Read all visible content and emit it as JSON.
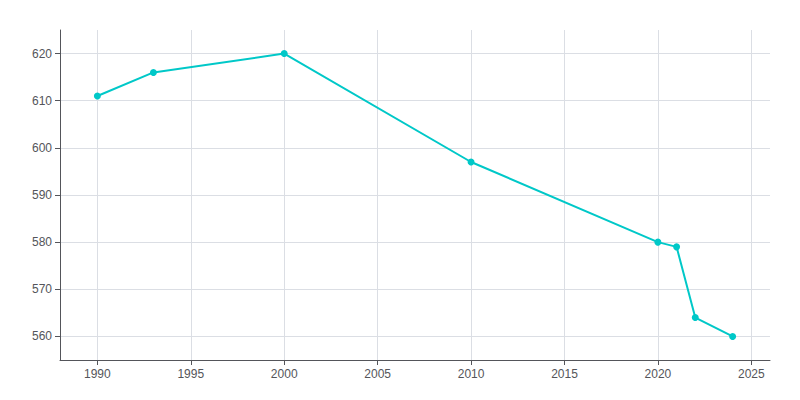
{
  "chart_data": {
    "type": "line",
    "x": [
      1990,
      1993,
      2000,
      2010,
      2020,
      2021,
      2022,
      2024
    ],
    "values": [
      611,
      616,
      620,
      597,
      580,
      579,
      564,
      560
    ],
    "color": "#00c8c8",
    "marker": "circle",
    "xlim": [
      1988,
      2026
    ],
    "ylim": [
      555,
      625
    ],
    "xticks": [
      1990,
      1995,
      2000,
      2005,
      2010,
      2015,
      2020,
      2025
    ],
    "yticks": [
      560,
      570,
      580,
      590,
      600,
      610,
      620
    ],
    "grid": true
  }
}
